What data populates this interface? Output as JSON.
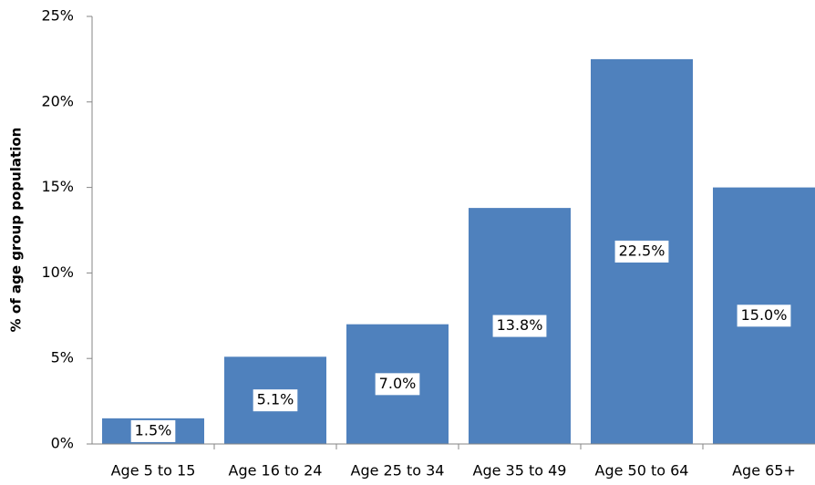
{
  "chart_data": {
    "type": "bar",
    "y_label": "% of age group population",
    "categories": [
      "Age 5 to 15",
      "Age 16 to 24",
      "Age 25 to 34",
      "Age 35 to 49",
      "Age 50 to 64",
      "Age 65+"
    ],
    "values": [
      1.5,
      5.1,
      7.0,
      13.8,
      22.5,
      15.0
    ],
    "value_labels": [
      "1.5%",
      "5.1%",
      "7.0%",
      "13.8%",
      "22.5%",
      "15.0%"
    ],
    "color": "#4f81bd",
    "ylim": [
      0,
      25
    ],
    "yticks": [
      {
        "value": 0,
        "label": "0%"
      },
      {
        "value": 5,
        "label": "5%"
      },
      {
        "value": 10,
        "label": "10%"
      },
      {
        "value": 15,
        "label": "15%"
      },
      {
        "value": 20,
        "label": "20%"
      },
      {
        "value": 25,
        "label": "25%"
      }
    ],
    "grid": false
  }
}
